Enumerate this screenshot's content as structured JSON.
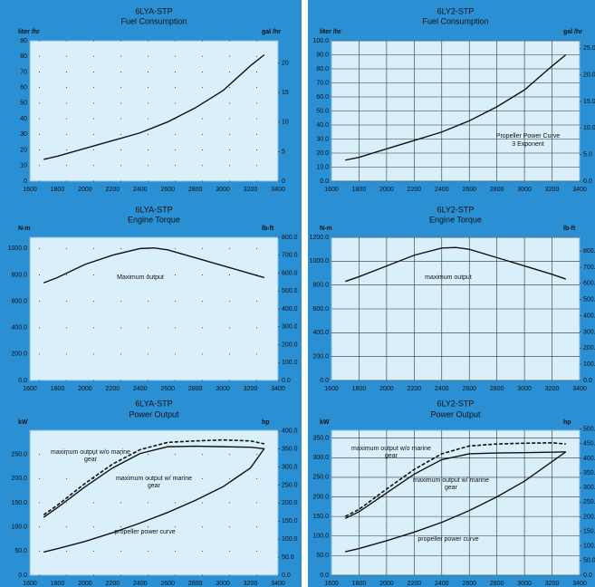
{
  "chart_data": [
    {
      "type": "line",
      "title": "6LYA-STP",
      "subtitle": "Fuel Consumption",
      "ylabel": "liter /hr",
      "y2label": "gal /hr",
      "x": [
        1700,
        1800,
        2000,
        2200,
        2400,
        2600,
        2800,
        3000,
        3200,
        3300
      ],
      "series": [
        {
          "name": "fuel consumption",
          "color": "#111111",
          "style": "solid",
          "values": [
            14,
            16,
            21,
            26,
            31,
            38,
            47,
            58,
            74,
            81
          ]
        }
      ],
      "xlim": [
        1600,
        3400
      ],
      "xticks": [
        1600,
        1800,
        2000,
        2200,
        2400,
        2600,
        2800,
        3000,
        3200,
        3400
      ],
      "ylim": [
        0,
        90
      ],
      "yticks": [
        0,
        10,
        20,
        30,
        40,
        50,
        60,
        70,
        80,
        90
      ],
      "y2lim": [
        0,
        23.78
      ],
      "y2ticks": [
        0,
        5,
        10,
        15,
        20
      ],
      "grid": true,
      "grid_style": "dotted",
      "annotations": []
    },
    {
      "type": "line",
      "title": "6LY2-STP",
      "subtitle": "Fuel Consumption",
      "ylabel": "liter /hr",
      "y2label": "gal /hr",
      "x": [
        1700,
        1800,
        2000,
        2200,
        2400,
        2600,
        2800,
        3000,
        3200,
        3300
      ],
      "series": [
        {
          "name": "fuel consumption",
          "color": "#111111",
          "style": "solid",
          "values": [
            15,
            17,
            23,
            29,
            35,
            43,
            53,
            65,
            82,
            90
          ]
        }
      ],
      "xlim": [
        1600,
        3400
      ],
      "xticks": [
        1600,
        1800,
        2000,
        2200,
        2400,
        2600,
        2800,
        3000,
        3200,
        3400
      ],
      "ylim": [
        0,
        100
      ],
      "yticks": [
        {
          "value": 0,
          "label": "0.0"
        },
        {
          "value": 10,
          "label": "10.0"
        },
        {
          "value": 20,
          "label": "20.0"
        },
        {
          "value": 30,
          "label": "30.0"
        },
        {
          "value": 40,
          "label": "40.0"
        },
        {
          "value": 50,
          "label": "50.0"
        },
        {
          "value": 60,
          "label": "60.0"
        },
        {
          "value": 70,
          "label": "70.0"
        },
        {
          "value": 80,
          "label": "80.0"
        },
        {
          "value": 90,
          "label": "90.0"
        },
        {
          "value": 100,
          "label": "100.0"
        }
      ],
      "y2lim": [
        0,
        26.42
      ],
      "y2ticks": [
        {
          "value": 0,
          "label": "0.0"
        },
        {
          "value": 5,
          "label": "5.0"
        },
        {
          "value": 10,
          "label": "10.0"
        },
        {
          "value": 15,
          "label": "15.0"
        },
        {
          "value": 20,
          "label": "20.0"
        },
        {
          "value": 25,
          "label": "25.0"
        }
      ],
      "grid": true,
      "grid_style": "solid",
      "annotations": [
        "Propeller Power Curve",
        "3 Exponent"
      ]
    },
    {
      "type": "line",
      "title": "6LYA-STP",
      "subtitle": "Engine Torque",
      "ylabel": "N-m",
      "y2label": "lb-ft",
      "x": [
        1700,
        1800,
        2000,
        2200,
        2400,
        2500,
        2600,
        2800,
        3000,
        3200,
        3300
      ],
      "series": [
        {
          "name": "torque",
          "color": "#111111",
          "style": "solid",
          "values": [
            740,
            780,
            880,
            950,
            1000,
            1005,
            990,
            930,
            870,
            810,
            780
          ]
        }
      ],
      "xlim": [
        1600,
        3400
      ],
      "xticks": [
        1600,
        1800,
        2000,
        2200,
        2400,
        2600,
        2800,
        3000,
        3200,
        3400
      ],
      "ylim": [
        0,
        1085
      ],
      "yticks": [
        {
          "value": 0,
          "label": "0.0"
        },
        {
          "value": 200,
          "label": "200.0"
        },
        {
          "value": 400,
          "label": "400.0"
        },
        {
          "value": 600,
          "label": "600.0"
        },
        {
          "value": 800,
          "label": "800.0"
        },
        {
          "value": 1000,
          "label": "1000.0"
        }
      ],
      "y2lim": [
        0,
        800
      ],
      "y2ticks": [
        {
          "value": 0,
          "label": "0.0"
        },
        {
          "value": 100,
          "label": "100.0"
        },
        {
          "value": 200,
          "label": "200.0"
        },
        {
          "value": 300,
          "label": "300.0"
        },
        {
          "value": 400,
          "label": "400.0"
        },
        {
          "value": 500,
          "label": "500.0"
        },
        {
          "value": 600,
          "label": "600.0"
        },
        {
          "value": 700,
          "label": "700.0"
        },
        {
          "value": 800,
          "label": "800.0"
        }
      ],
      "grid": true,
      "grid_style": "dotted",
      "annotations": [
        "Maximum output"
      ]
    },
    {
      "type": "line",
      "title": "6LY2-STP",
      "subtitle": "Engine Torque",
      "ylabel": "N-m",
      "y2label": "lb-ft",
      "x": [
        1700,
        1800,
        2000,
        2200,
        2400,
        2500,
        2600,
        2800,
        3000,
        3200,
        3300
      ],
      "series": [
        {
          "name": "torque",
          "color": "#111111",
          "style": "solid",
          "values": [
            830,
            870,
            960,
            1050,
            1110,
            1115,
            1100,
            1030,
            960,
            890,
            850
          ]
        }
      ],
      "xlim": [
        1600,
        3400
      ],
      "xticks": [
        1600,
        1800,
        2000,
        2200,
        2400,
        2600,
        2800,
        3000,
        3200,
        3400
      ],
      "ylim": [
        0,
        1200
      ],
      "yticks": [
        {
          "value": 0,
          "label": "0.0"
        },
        {
          "value": 200,
          "label": "200.0"
        },
        {
          "value": 400,
          "label": "400.0"
        },
        {
          "value": 600,
          "label": "600.0"
        },
        {
          "value": 800,
          "label": "800.0"
        },
        {
          "value": 1000,
          "label": "1000.0"
        },
        {
          "value": 1200,
          "label": "1200.0"
        }
      ],
      "y2lim": [
        0,
        885
      ],
      "y2ticks": [
        {
          "value": 0,
          "label": "0.0"
        },
        {
          "value": 100,
          "label": "100.0"
        },
        {
          "value": 200,
          "label": "200.0"
        },
        {
          "value": 300,
          "label": "300.0"
        },
        {
          "value": 400,
          "label": "400.0"
        },
        {
          "value": 500,
          "label": "500.0"
        },
        {
          "value": 600,
          "label": "600.0"
        },
        {
          "value": 700,
          "label": "700.0"
        },
        {
          "value": 800,
          "label": "800.0"
        }
      ],
      "grid": true,
      "grid_style": "solid",
      "annotations": [
        "maximum output"
      ]
    },
    {
      "type": "line",
      "title": "6LYA-STP",
      "subtitle": "Power Output",
      "ylabel": "kW",
      "y2label": "hp",
      "x": [
        1700,
        1800,
        2000,
        2200,
        2400,
        2600,
        2800,
        3000,
        3200,
        3300
      ],
      "series": [
        {
          "name": "maximum output w/o marine gear",
          "color": "#111111",
          "style": "dashed",
          "values": [
            125,
            145,
            190,
            230,
            260,
            275,
            278,
            280,
            278,
            272
          ]
        },
        {
          "name": "maximum output w/ marine gear",
          "color": "#111111",
          "style": "solid",
          "values": [
            120,
            140,
            183,
            222,
            252,
            266,
            267,
            266,
            265,
            262
          ]
        },
        {
          "name": "propeller power curve",
          "color": "#111111",
          "style": "solid",
          "values": [
            48,
            55,
            70,
            88,
            108,
            130,
            155,
            183,
            222,
            262
          ]
        }
      ],
      "xlim": [
        1600,
        3400
      ],
      "xticks": [
        1600,
        1800,
        2000,
        2200,
        2400,
        2600,
        2800,
        3000,
        3200,
        3400
      ],
      "ylim": [
        0,
        300
      ],
      "yticks": [
        {
          "value": 0,
          "label": "0.0"
        },
        {
          "value": 50,
          "label": "50.0"
        },
        {
          "value": 100,
          "label": "100.0"
        },
        {
          "value": 150,
          "label": "150.0"
        },
        {
          "value": 200,
          "label": "200.0"
        },
        {
          "value": 250,
          "label": "250.0"
        }
      ],
      "y2lim": [
        0,
        402
      ],
      "y2ticks": [
        {
          "value": 0,
          "label": "0.0"
        },
        {
          "value": 50,
          "label": "50.0"
        },
        {
          "value": 100,
          "label": "100.0"
        },
        {
          "value": 150,
          "label": "150.0"
        },
        {
          "value": 200,
          "label": "200.0"
        },
        {
          "value": 250,
          "label": "250.0"
        },
        {
          "value": 300,
          "label": "300.0"
        },
        {
          "value": 350,
          "label": "350.0"
        },
        {
          "value": 400,
          "label": "400.0"
        }
      ],
      "grid": true,
      "grid_style": "dotted",
      "annotations": []
    },
    {
      "type": "line",
      "title": "6LY2-STP",
      "subtitle": "Power Output",
      "ylabel": "kW",
      "y2label": "hp",
      "x": [
        1700,
        1800,
        2000,
        2200,
        2400,
        2600,
        2800,
        3000,
        3200,
        3300
      ],
      "series": [
        {
          "name": "maximum output w/o marine gear",
          "color": "#111111",
          "style": "dashed",
          "values": [
            150,
            168,
            220,
            270,
            310,
            330,
            335,
            337,
            338,
            335
          ]
        },
        {
          "name": "maximum output w/ marine gear",
          "color": "#111111",
          "style": "solid",
          "values": [
            145,
            162,
            210,
            258,
            295,
            310,
            312,
            313,
            314,
            315
          ]
        },
        {
          "name": "propeller power curve",
          "color": "#111111",
          "style": "solid",
          "values": [
            60,
            68,
            88,
            110,
            135,
            165,
            200,
            240,
            290,
            315
          ]
        }
      ],
      "xlim": [
        1600,
        3400
      ],
      "xticks": [
        1600,
        1800,
        2000,
        2200,
        2400,
        2600,
        2800,
        3000,
        3200,
        3400
      ],
      "ylim": [
        0,
        370
      ],
      "yticks": [
        {
          "value": 0,
          "label": "0.0"
        },
        {
          "value": 50,
          "label": "50.0"
        },
        {
          "value": 100,
          "label": "100.0"
        },
        {
          "value": 150,
          "label": "150.0"
        },
        {
          "value": 200,
          "label": "200.0"
        },
        {
          "value": 250,
          "label": "250.0"
        },
        {
          "value": 300,
          "label": "300.0"
        },
        {
          "value": 350,
          "label": "350.0"
        }
      ],
      "y2lim": [
        0,
        496
      ],
      "y2ticks": [
        {
          "value": 0,
          "label": "0.0"
        },
        {
          "value": 50,
          "label": "50.0"
        },
        {
          "value": 100,
          "label": "100.0"
        },
        {
          "value": 150,
          "label": "150.0"
        },
        {
          "value": 200,
          "label": "200.0"
        },
        {
          "value": 250,
          "label": "250.0"
        },
        {
          "value": 300,
          "label": "300.0"
        },
        {
          "value": 350,
          "label": "350.0"
        },
        {
          "value": 400,
          "label": "400.0"
        },
        {
          "value": 450,
          "label": "450.0"
        },
        {
          "value": 500,
          "label": "500.0"
        }
      ],
      "grid": true,
      "grid_style": "solid",
      "annotations": []
    }
  ]
}
